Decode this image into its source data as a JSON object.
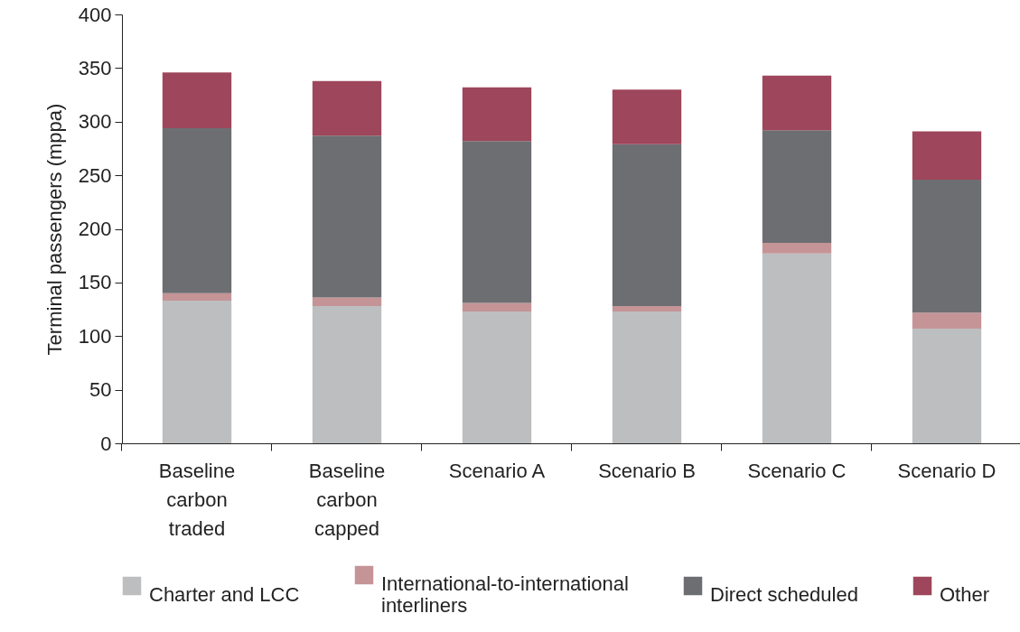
{
  "chart_data": {
    "type": "bar",
    "stacked": true,
    "ylabel": "Terminal passengers (mppa)",
    "categories": [
      "Baseline carbon traded",
      "Baseline carbon capped",
      "Scenario A",
      "Scenario B",
      "Scenario C",
      "Scenario D"
    ],
    "series": [
      {
        "name": "Charter and LCC",
        "color": "#bdbec0",
        "values": [
          133,
          128,
          123,
          123,
          177,
          107
        ]
      },
      {
        "name": "International-to-international interliners",
        "color": "#c59497",
        "values": [
          7,
          8,
          8,
          5,
          10,
          15
        ]
      },
      {
        "name": "Direct scheduled",
        "color": "#6d6e72",
        "values": [
          154,
          151,
          151,
          151,
          105,
          124
        ]
      },
      {
        "name": "Other",
        "color": "#9e465b",
        "values": [
          52,
          51,
          50,
          51,
          51,
          45
        ]
      }
    ],
    "ylim": [
      0,
      400
    ],
    "yticks": [
      0,
      50,
      100,
      150,
      200,
      250,
      300,
      350,
      400
    ],
    "grid": false,
    "legend": "bottom"
  }
}
